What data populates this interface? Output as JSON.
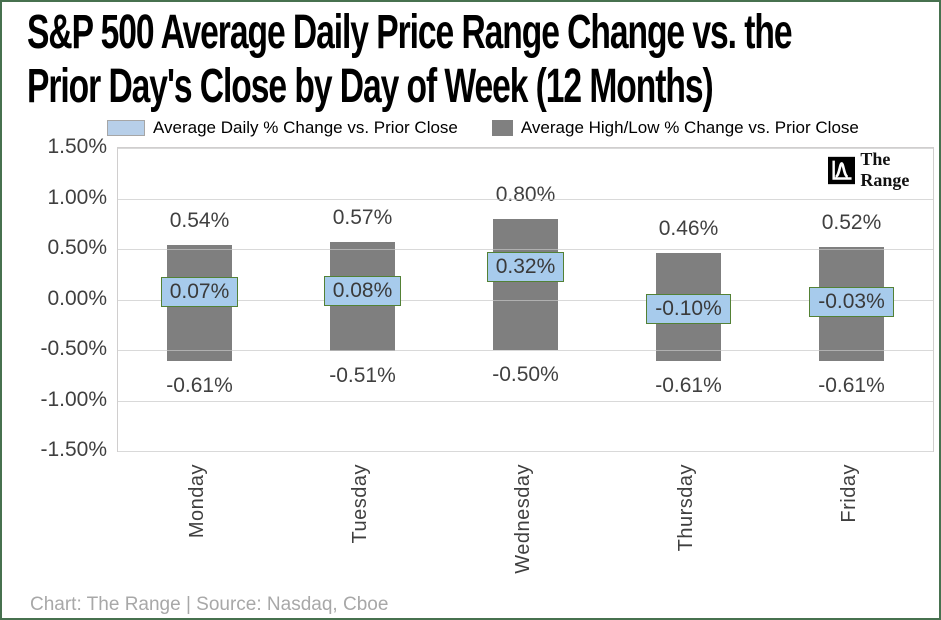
{
  "title": {
    "lines": [
      "S&P 500 Average Daily Price Range Change vs. the",
      "Prior Day's Close by Day of Week (12 Months)"
    ]
  },
  "watermark": {
    "text": "The Range"
  },
  "footer": {
    "text": "Chart: The Range | Source: Nasdaq, Cboe"
  },
  "colors": {
    "accent_blue": "#A7CBEC",
    "legend_blue": "#B7CFE9",
    "bar_gray": "#7F7F7F",
    "box_border_green": "#538135",
    "outer_border_green": "#47714F",
    "gridline": "#D9D9D9",
    "label_text": "#404040",
    "footer_gray": "#A8A8A8"
  },
  "chart_data": {
    "type": "bar",
    "title": "S&P 500 Average Daily Price Range Change vs. the Prior Day's Close by Day of Week (12 Months)",
    "categories": [
      "Monday",
      "Tuesday",
      "Wednesday",
      "Thursday",
      "Friday"
    ],
    "series": [
      {
        "name": "Average Daily % Change vs. Prior Close",
        "type": "point-label",
        "values": [
          0.07,
          0.08,
          0.32,
          -0.1,
          -0.03
        ]
      },
      {
        "name": "Average High/Low % Change vs. Prior Close",
        "type": "range-bar",
        "high": [
          0.54,
          0.57,
          0.8,
          0.46,
          0.52
        ],
        "low": [
          -0.61,
          -0.51,
          -0.5,
          -0.61,
          -0.61
        ]
      }
    ],
    "ylim": [
      -1.5,
      1.5
    ],
    "ytick_labels": [
      "1.50%",
      "1.00%",
      "0.50%",
      "0.00%",
      "-0.50%",
      "-1.00%",
      "-1.50%"
    ],
    "grid": "horizontal",
    "legend_position": "top"
  }
}
